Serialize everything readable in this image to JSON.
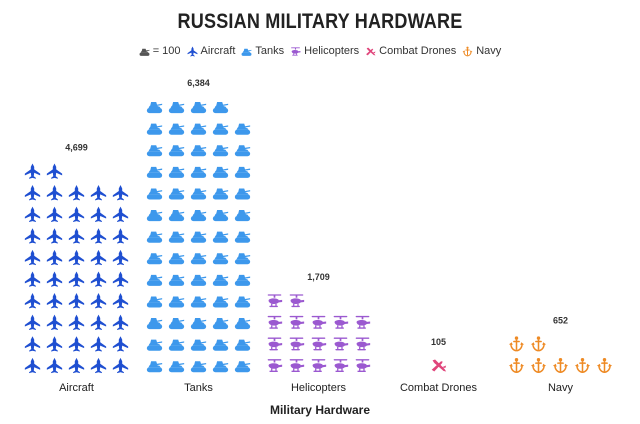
{
  "chart_data": {
    "type": "pictograph",
    "title": "RUSSIAN MILITARY HARDWARE",
    "xlabel": "Military Hardware",
    "unit_label": "= 100",
    "unit_value": 100,
    "categories": [
      "Aircraft",
      "Tanks",
      "Helicopters",
      "Combat Drones",
      "Navy"
    ],
    "values": [
      4699,
      6384,
      1709,
      105,
      652
    ],
    "value_labels": [
      "4,699",
      "6,384",
      "1,709",
      "105",
      "652"
    ],
    "legend": [
      "Aircraft",
      "Tanks",
      "Helicopters",
      "Combat Drones",
      "Navy"
    ],
    "icons": [
      "jet-icon",
      "tank-icon",
      "helicopter-icon",
      "drone-icon",
      "anchor-icon"
    ],
    "colors": [
      "#1f4fd1",
      "#3d98ec",
      "#9b59d0",
      "#e0457b",
      "#ee8a24"
    ],
    "unit_icon_color": "#555555",
    "legend_placement": "top",
    "grid": false
  }
}
